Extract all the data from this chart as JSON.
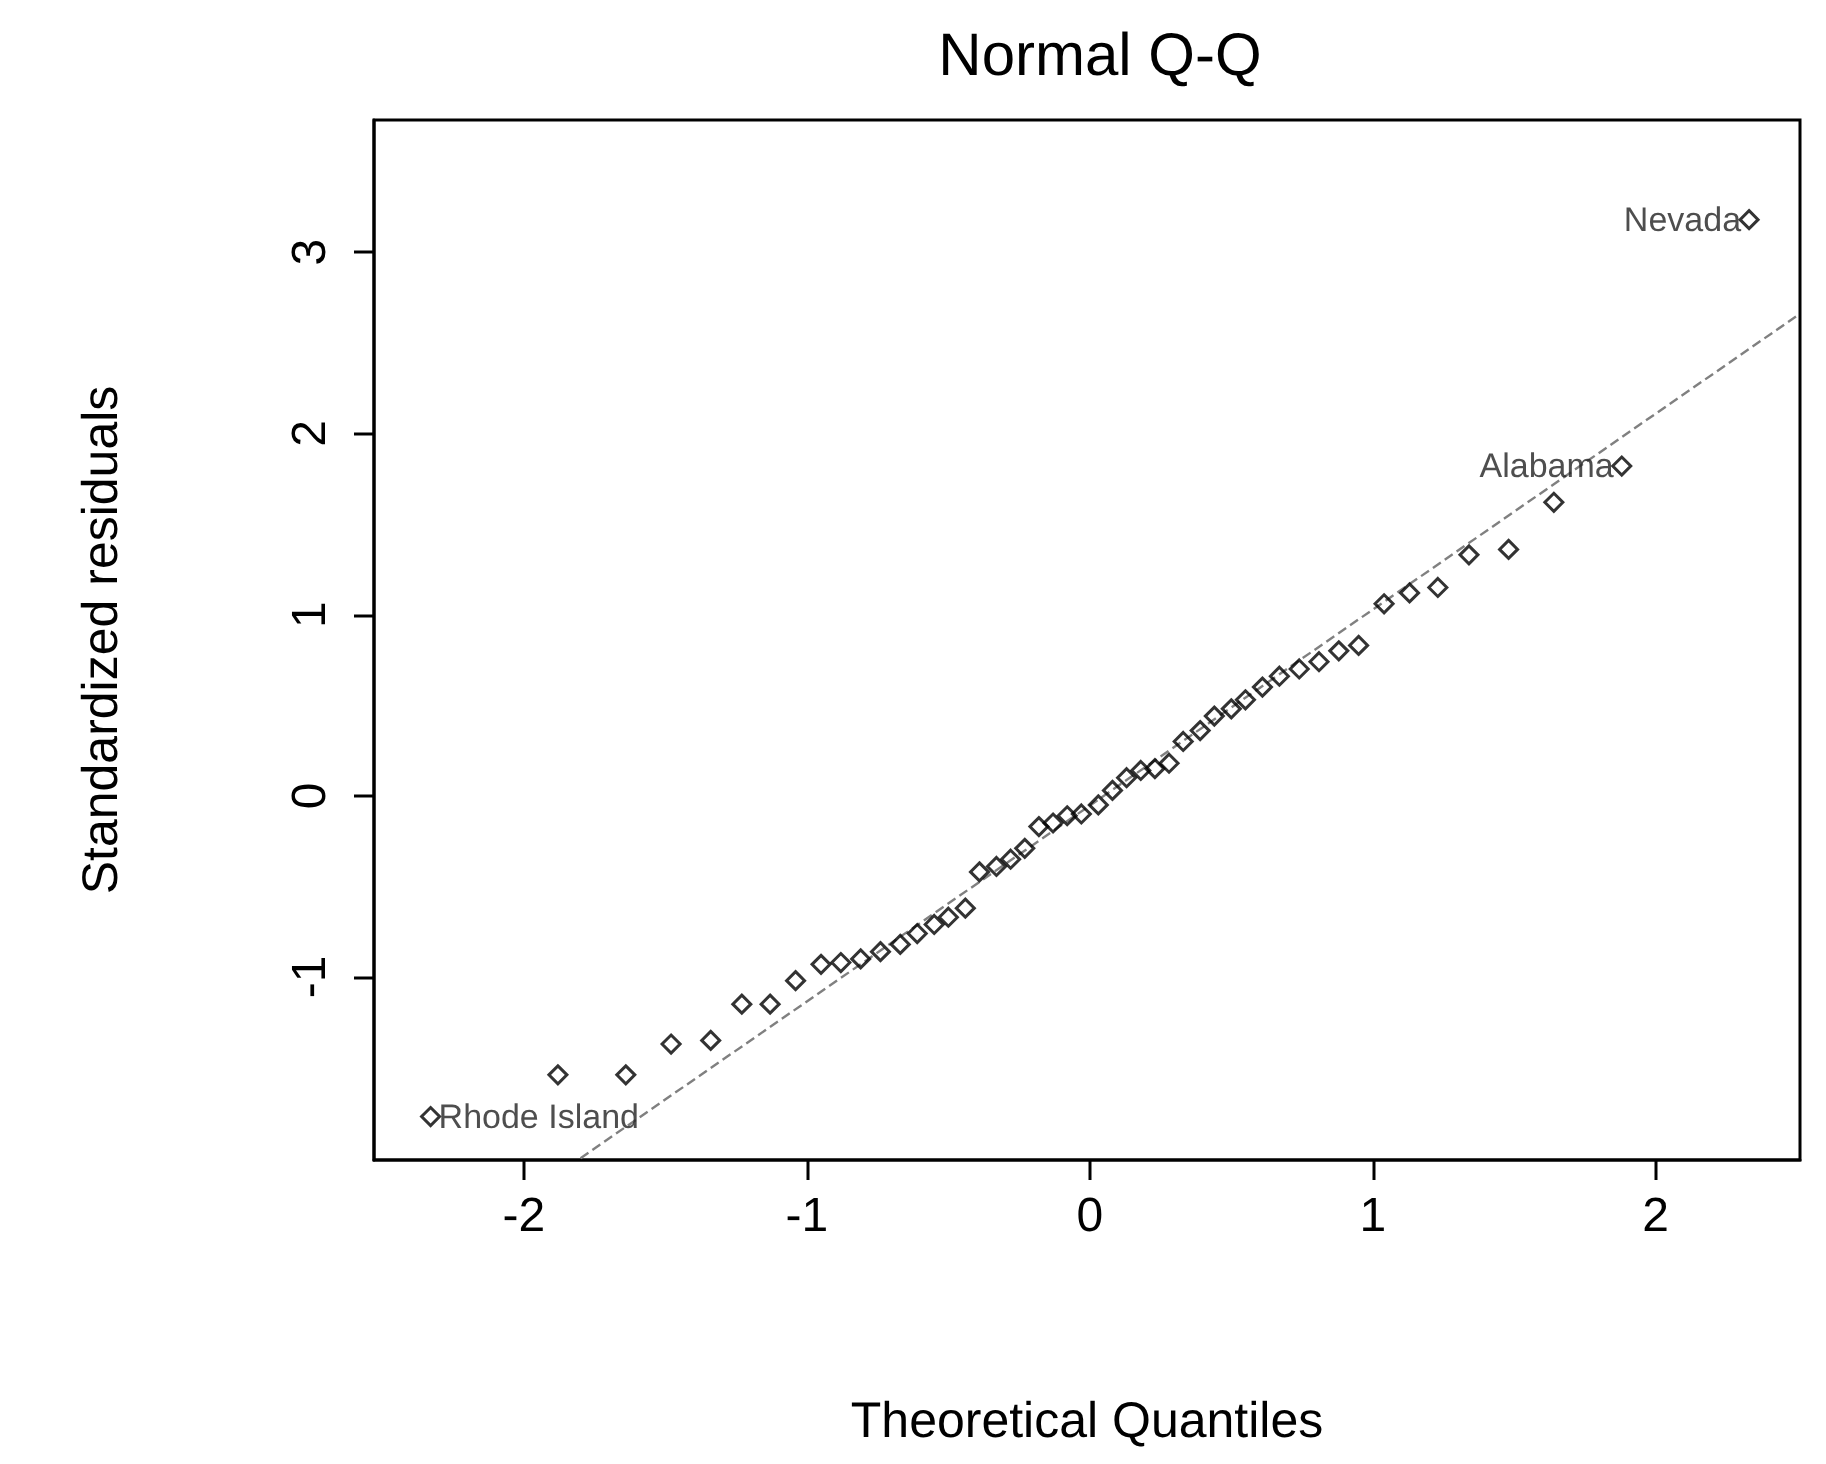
{
  "chart_data": {
    "type": "scatter",
    "title": "Normal Q-Q",
    "xlabel": "Theoretical Quantiles",
    "ylabel": "Standardized residuals",
    "marker": "diamond",
    "grid": false,
    "xlim": [
      -2.53,
      2.51
    ],
    "ylim": [
      -2.01,
      3.73
    ],
    "xticks": [
      -2,
      -1,
      0,
      1,
      2
    ],
    "yticks": [
      -1,
      0,
      1,
      2,
      3
    ],
    "series": [
      {
        "color": "#000000",
        "x": [
          -2.33,
          -1.88,
          -1.64,
          -1.48,
          -1.34,
          -1.23,
          -1.13,
          -1.04,
          -0.95,
          -0.88,
          -0.81,
          -0.74,
          -0.67,
          -0.61,
          -0.55,
          -0.5,
          -0.44,
          -0.39,
          -0.33,
          -0.28,
          -0.23,
          -0.18,
          -0.13,
          -0.08,
          -0.03,
          0.03,
          0.08,
          0.13,
          0.18,
          0.23,
          0.28,
          0.33,
          0.39,
          0.44,
          0.5,
          0.55,
          0.61,
          0.67,
          0.74,
          0.81,
          0.88,
          0.95,
          1.04,
          1.13,
          1.23,
          1.34,
          1.48,
          1.64,
          1.88,
          2.33
        ],
        "values": [
          -1.77,
          -1.54,
          -1.54,
          -1.37,
          -1.35,
          -1.15,
          -1.15,
          -1.02,
          -0.93,
          -0.92,
          -0.9,
          -0.86,
          -0.82,
          -0.76,
          -0.71,
          -0.67,
          -0.62,
          -0.42,
          -0.39,
          -0.35,
          -0.29,
          -0.17,
          -0.15,
          -0.11,
          -0.1,
          -0.05,
          0.03,
          0.1,
          0.14,
          0.15,
          0.18,
          0.3,
          0.36,
          0.44,
          0.48,
          0.53,
          0.6,
          0.66,
          0.7,
          0.74,
          0.8,
          0.83,
          1.06,
          1.12,
          1.15,
          1.33,
          1.36,
          1.62,
          1.82,
          3.18
        ]
      },
      {
        "type": "line",
        "color": "#808080",
        "line_style": "dashed",
        "marker": "none",
        "x": [
          -1.8,
          2.5
        ],
        "values": [
          -2.0,
          2.65
        ]
      }
    ],
    "annotations": [
      {
        "text": "Rhode Island",
        "x": -2.33,
        "y": -1.77
      },
      {
        "text": "Alabama",
        "x": 1.88,
        "y": 1.82
      },
      {
        "text": "Nevada",
        "x": 2.33,
        "y": 3.18
      }
    ]
  }
}
